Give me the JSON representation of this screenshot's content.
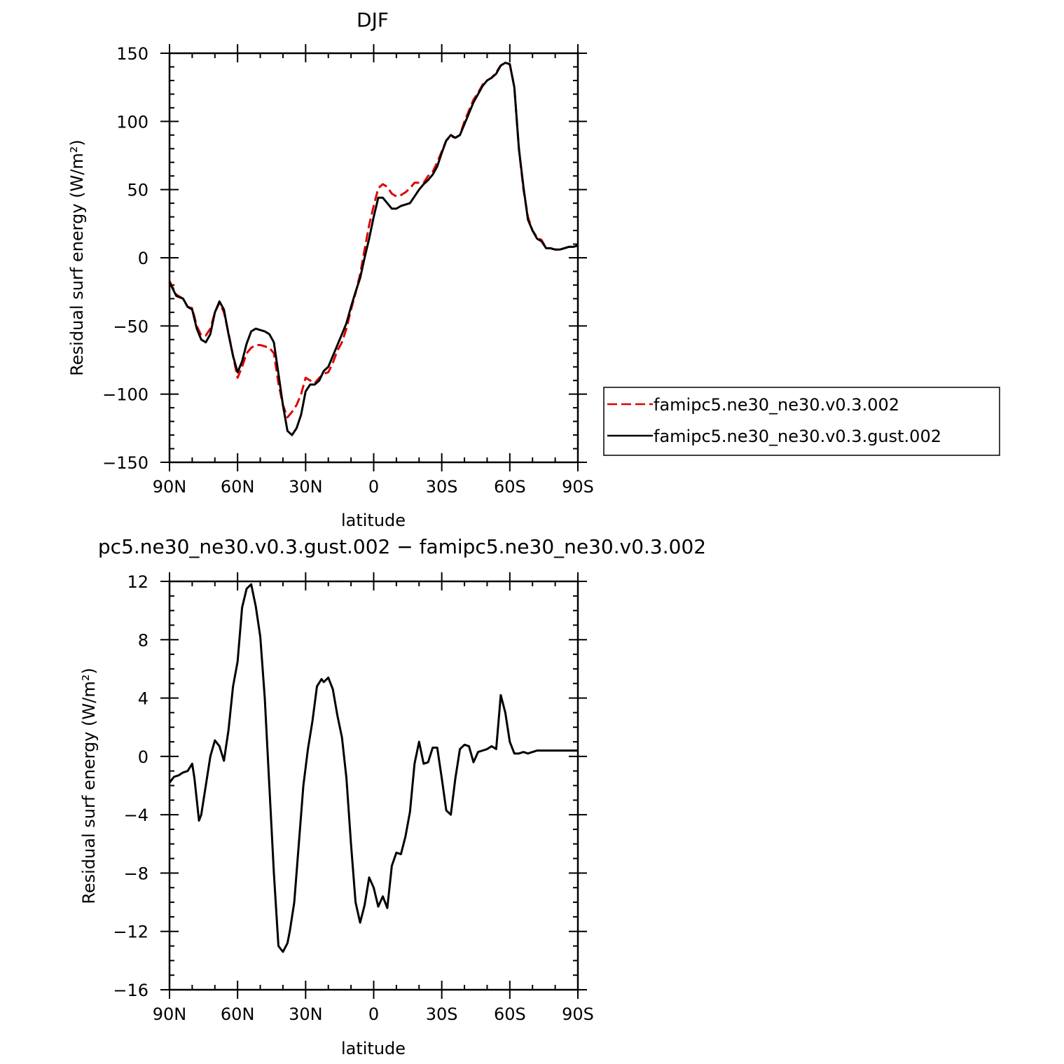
{
  "chart_data": [
    {
      "type": "line",
      "title": "DJF",
      "xlabel": "latitude",
      "ylabel": "Residual surf energy (W/m²)",
      "xlim": [
        -90,
        90
      ],
      "ylim": [
        -150,
        150
      ],
      "x_ticks": [
        {
          "value": -90,
          "label": "90N"
        },
        {
          "value": -60,
          "label": "60N"
        },
        {
          "value": -30,
          "label": "30N"
        },
        {
          "value": 0,
          "label": "0"
        },
        {
          "value": 30,
          "label": "30S"
        },
        {
          "value": 60,
          "label": "60S"
        },
        {
          "value": 90,
          "label": "90S"
        }
      ],
      "y_ticks": [
        {
          "value": 150,
          "label": "150"
        },
        {
          "value": 100,
          "label": "100"
        },
        {
          "value": 50,
          "label": "50"
        },
        {
          "value": 0,
          "label": "0"
        },
        {
          "value": -50,
          "label": "−50"
        },
        {
          "value": -100,
          "label": "−100"
        },
        {
          "value": -150,
          "label": "−150"
        }
      ],
      "legend": {
        "placement": "right"
      },
      "series": [
        {
          "name": "famipc5.ne30_ne30.v0.3.002",
          "color": "#e00000",
          "dash": "dashed",
          "x": [
            -90,
            -87,
            -84,
            -82,
            -80,
            -78,
            -76,
            -74,
            -72,
            -70,
            -68,
            -66,
            -64,
            -62,
            -60,
            -58,
            -56,
            -54,
            -52,
            -50,
            -48,
            -46,
            -44,
            -42,
            -40,
            -38,
            -36,
            -34,
            -32,
            -30,
            -28,
            -26,
            -24,
            -22,
            -20,
            -18,
            -16,
            -14,
            -12,
            -10,
            -8,
            -6,
            -4,
            -2,
            0,
            2,
            4,
            6,
            8,
            10,
            12,
            14,
            16,
            18,
            20,
            22,
            24,
            26,
            28,
            30,
            32,
            34,
            36,
            38,
            40,
            42,
            44,
            46,
            48,
            50,
            52,
            54,
            56,
            58,
            60,
            62,
            64,
            66,
            68,
            70,
            72,
            74,
            76,
            78,
            80,
            82,
            84,
            86,
            88,
            90
          ],
          "values": [
            -17,
            -27,
            -30,
            -36,
            -37,
            -50,
            -57,
            -57,
            -52,
            -40,
            -33,
            -40,
            -55,
            -72,
            -88,
            -80,
            -70,
            -66,
            -64,
            -64,
            -65,
            -66,
            -70,
            -92,
            -108,
            -117,
            -113,
            -108,
            -100,
            -88,
            -90,
            -92,
            -88,
            -85,
            -84,
            -77,
            -68,
            -62,
            -52,
            -38,
            -26,
            -12,
            6,
            24,
            38,
            51,
            54,
            52,
            47,
            45,
            46,
            48,
            51,
            55,
            55,
            55,
            60,
            63,
            70,
            78,
            86,
            89,
            88,
            90,
            100,
            108,
            116,
            121,
            127,
            130,
            132,
            136,
            141,
            143,
            142,
            125,
            80,
            50,
            30,
            20,
            15,
            13,
            7,
            7,
            6,
            6,
            7,
            8,
            8,
            9
          ]
        },
        {
          "name": "famipc5.ne30_ne30.v0.3.gust.002",
          "color": "#000000",
          "dash": "solid",
          "x": [
            -90,
            -87,
            -84,
            -82,
            -80,
            -78,
            -76,
            -74,
            -72,
            -70,
            -68,
            -66,
            -64,
            -62,
            -60,
            -58,
            -56,
            -54,
            -52,
            -50,
            -48,
            -46,
            -44,
            -42,
            -40,
            -38,
            -36,
            -34,
            -32,
            -30,
            -28,
            -26,
            -24,
            -22,
            -20,
            -18,
            -16,
            -14,
            -12,
            -10,
            -8,
            -6,
            -4,
            -2,
            0,
            2,
            4,
            6,
            8,
            10,
            12,
            14,
            16,
            18,
            20,
            22,
            24,
            26,
            28,
            30,
            32,
            34,
            36,
            38,
            40,
            42,
            44,
            46,
            48,
            50,
            52,
            54,
            56,
            58,
            60,
            62,
            64,
            66,
            68,
            70,
            72,
            74,
            76,
            78,
            80,
            82,
            84,
            86,
            88,
            90
          ],
          "values": [
            -18,
            -28,
            -30,
            -36,
            -38,
            -52,
            -60,
            -62,
            -56,
            -40,
            -32,
            -38,
            -56,
            -72,
            -84,
            -76,
            -63,
            -54,
            -52,
            -53,
            -54,
            -56,
            -62,
            -85,
            -108,
            -127,
            -130,
            -125,
            -115,
            -98,
            -93,
            -93,
            -90,
            -83,
            -80,
            -72,
            -64,
            -56,
            -48,
            -36,
            -25,
            -15,
            0,
            14,
            30,
            44,
            44,
            40,
            36,
            36,
            38,
            39,
            40,
            45,
            50,
            54,
            57,
            61,
            67,
            77,
            86,
            90,
            88,
            90,
            98,
            106,
            114,
            120,
            126,
            130,
            132,
            135,
            141,
            143,
            142,
            125,
            80,
            52,
            28,
            20,
            14,
            12,
            7,
            7,
            6,
            6,
            7,
            8,
            8,
            9
          ]
        }
      ]
    },
    {
      "type": "line",
      "title": "pc5.ne30_ne30.v0.3.gust.002 − famipc5.ne30_ne30.v0.3.002",
      "xlabel": "latitude",
      "ylabel": "Residual surf energy (W/m²)",
      "xlim": [
        -90,
        90
      ],
      "ylim": [
        -16,
        12
      ],
      "x_ticks": [
        {
          "value": -90,
          "label": "90N"
        },
        {
          "value": -60,
          "label": "60N"
        },
        {
          "value": -30,
          "label": "30N"
        },
        {
          "value": 0,
          "label": "0"
        },
        {
          "value": 30,
          "label": "30S"
        },
        {
          "value": 60,
          "label": "60S"
        },
        {
          "value": 90,
          "label": "90S"
        }
      ],
      "y_ticks": [
        {
          "value": 12,
          "label": "12"
        },
        {
          "value": 8,
          "label": "8"
        },
        {
          "value": 4,
          "label": "4"
        },
        {
          "value": 0,
          "label": "0"
        },
        {
          "value": -4,
          "label": "−4"
        },
        {
          "value": -8,
          "label": "−8"
        },
        {
          "value": -12,
          "label": "−12"
        },
        {
          "value": -16,
          "label": "−16"
        }
      ],
      "series": [
        {
          "color": "#000000",
          "dash": "solid",
          "x": [
            -90,
            -88,
            -86,
            -84,
            -82,
            -80,
            -79,
            -77,
            -76,
            -74,
            -72,
            -70,
            -68,
            -66,
            -64,
            -62,
            -60,
            -58,
            -56,
            -54,
            -52,
            -50,
            -48,
            -46,
            -44,
            -42,
            -40,
            -38,
            -37,
            -35,
            -33,
            -31,
            -29,
            -27,
            -25,
            -23,
            -22,
            -20,
            -18,
            -16,
            -14,
            -12,
            -10,
            -8,
            -6,
            -4,
            -2,
            0,
            2,
            4,
            6,
            8,
            10,
            12,
            14,
            16,
            18,
            20,
            22,
            24,
            26,
            28,
            30,
            32,
            34,
            36,
            38,
            40,
            42,
            44,
            46,
            48,
            50,
            52,
            54,
            56,
            58,
            60,
            62,
            64,
            66,
            68,
            70,
            72,
            74,
            76,
            78,
            80,
            82,
            84,
            86,
            88,
            90
          ],
          "values": [
            -1.8,
            -1.4,
            -1.3,
            -1.1,
            -1.0,
            -0.5,
            -1.5,
            -4.4,
            -4.0,
            -2.0,
            0.0,
            1.1,
            0.7,
            -0.3,
            1.8,
            4.8,
            6.5,
            10.2,
            11.5,
            11.8,
            10.3,
            8.2,
            4.0,
            -2.0,
            -8.0,
            -13.0,
            -13.4,
            -12.8,
            -12.0,
            -10.0,
            -6.0,
            -2.0,
            0.5,
            2.4,
            4.8,
            5.3,
            5.1,
            5.4,
            4.6,
            2.8,
            1.3,
            -1.5,
            -6.0,
            -10.0,
            -11.4,
            -10.2,
            -8.3,
            -9.0,
            -10.3,
            -9.6,
            -10.4,
            -7.5,
            -6.6,
            -6.7,
            -5.5,
            -3.8,
            -0.5,
            1.0,
            -0.5,
            -0.4,
            0.6,
            0.6,
            -1.5,
            -3.7,
            -4.0,
            -1.5,
            0.5,
            0.8,
            0.7,
            -0.4,
            0.3,
            0.4,
            0.5,
            0.7,
            0.5,
            4.2,
            3.0,
            1.0,
            0.2,
            0.2,
            0.3,
            0.2,
            0.3,
            0.4,
            0.4,
            0.4,
            0.4,
            0.4,
            0.4,
            0.4,
            0.4,
            0.4,
            0.4
          ]
        }
      ]
    }
  ]
}
